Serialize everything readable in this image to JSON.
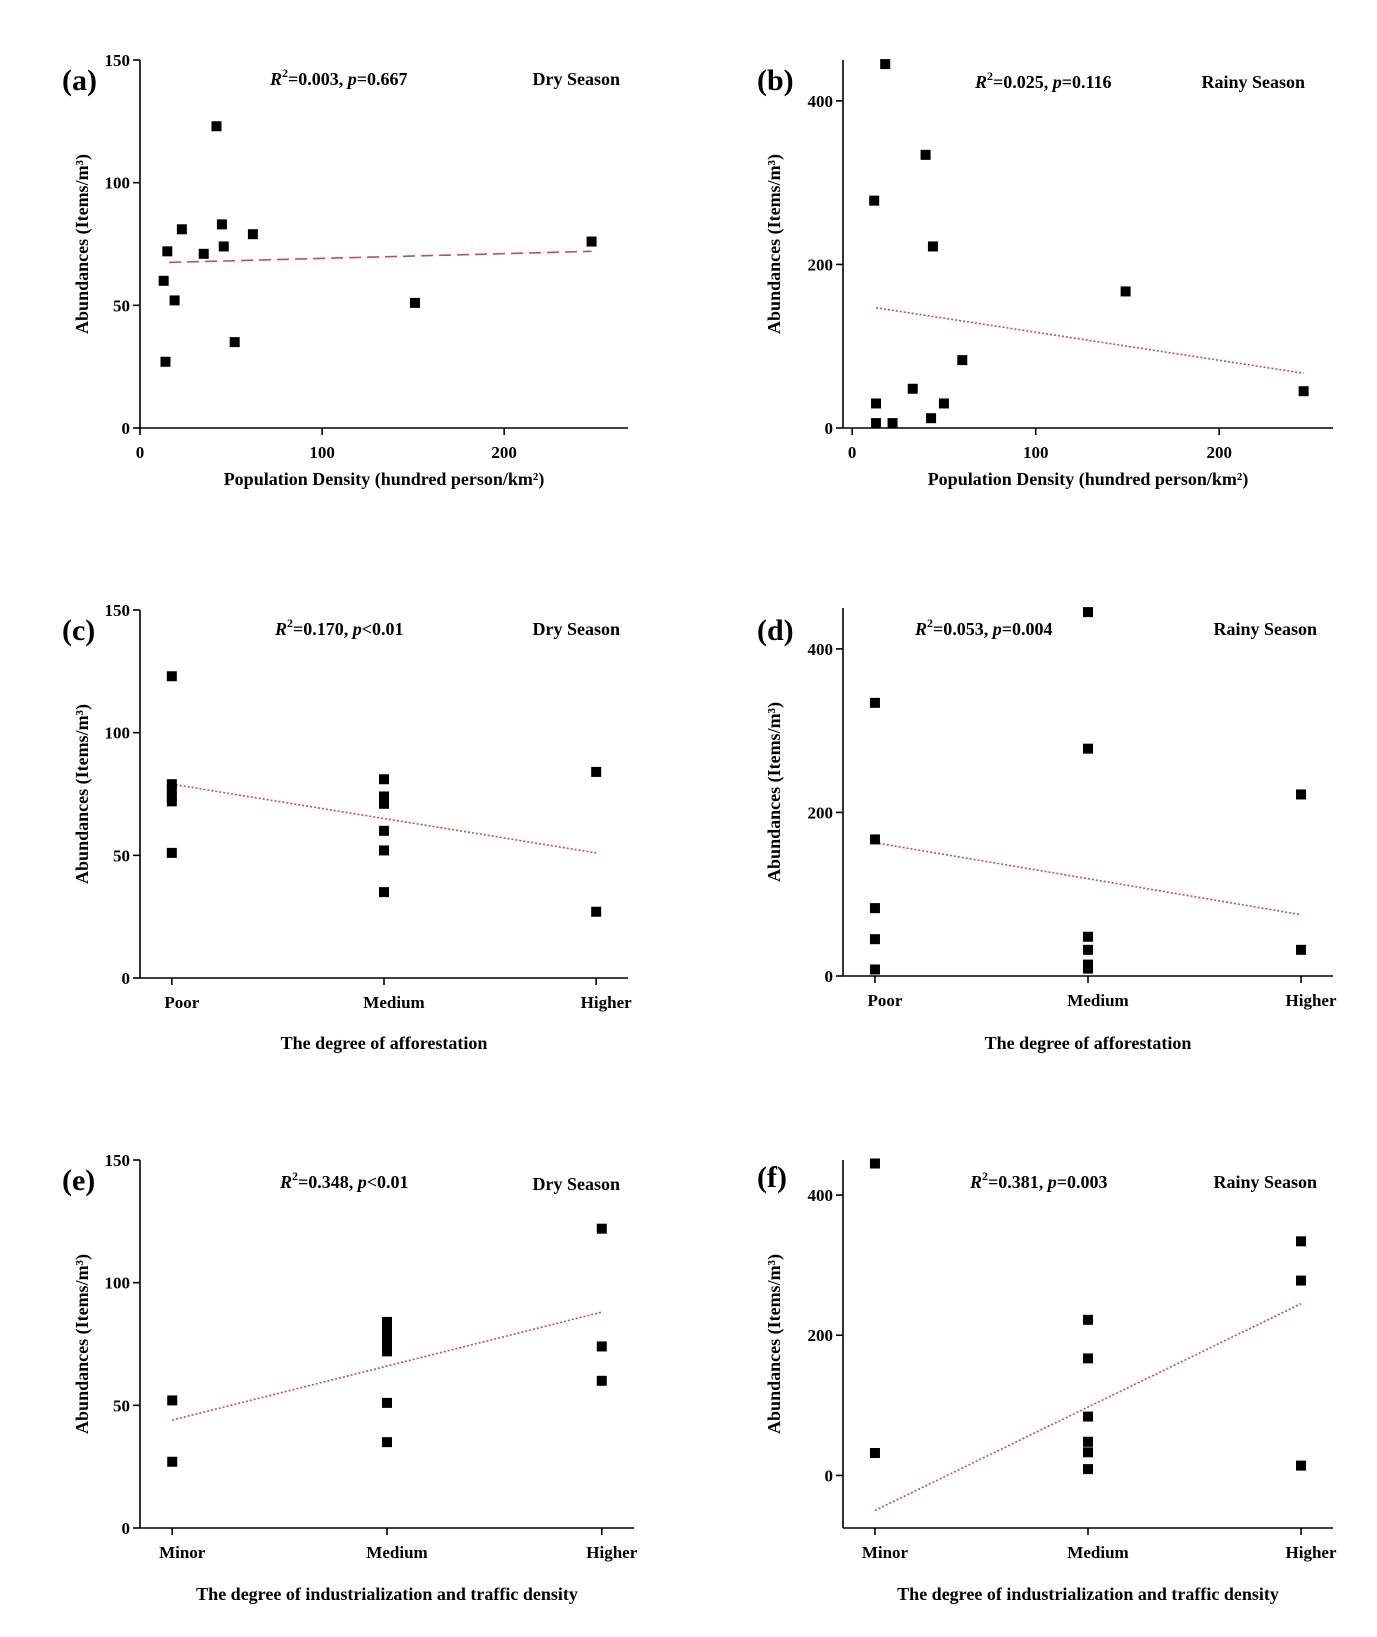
{
  "chart_data": [
    {
      "type": "scatter",
      "panel": "(a)",
      "season": "Dry Season",
      "stat": {
        "r2_label": "R",
        "r2_value": "=0.003, ",
        "p_label": "p",
        "p_value": "=0.667"
      },
      "xlabel": "Population Density (hundred person/km²)",
      "ylabel": "Abundances (Items/m³)",
      "xlim": [
        0,
        268
      ],
      "ylim": [
        0,
        150
      ],
      "xticks": [
        0,
        100,
        200
      ],
      "yticks": [
        0,
        50,
        100,
        150
      ],
      "x": [
        13,
        14,
        15,
        19,
        23,
        35,
        42,
        45,
        46,
        52,
        62,
        151,
        248
      ],
      "y": [
        60,
        27,
        72,
        52,
        81,
        71,
        123,
        83,
        74,
        35,
        79,
        51,
        76
      ],
      "trend": {
        "x": [
          16,
          248
        ],
        "y": [
          67.5,
          72
        ],
        "style": "dashed"
      }
    },
    {
      "type": "scatter",
      "panel": "(b)",
      "season": "Rainy Season",
      "stat": {
        "r2_label": "R",
        "r2_value": "=0.025, ",
        "p_label": "p",
        "p_value": "=0.116"
      },
      "xlabel": "Population Density (hundred person/km²)",
      "ylabel": "Abundances (Items/m³)",
      "xlim": [
        -5,
        262
      ],
      "ylim": [
        0,
        450
      ],
      "xticks": [
        0,
        100,
        200
      ],
      "yticks": [
        0,
        200,
        400
      ],
      "x": [
        12,
        13,
        13,
        18,
        22,
        33,
        40,
        43,
        44,
        50,
        60,
        149,
        246
      ],
      "y": [
        278,
        30,
        6,
        445,
        6,
        48,
        334,
        12,
        222,
        30,
        83,
        167,
        45
      ],
      "trend": {
        "x": [
          13,
          246
        ],
        "y": [
          147,
          67
        ],
        "style": "dotted"
      }
    },
    {
      "type": "scatter",
      "panel": "(c)",
      "season": "Dry Season",
      "stat": {
        "r2_label": "R",
        "r2_value": "=0.170, ",
        "p_label": "p",
        "p_value": "<0.01"
      },
      "xlabel": "The degree of afforestation",
      "ylabel": "Abundances (Items/m³)",
      "categories": [
        "Poor",
        "Medium",
        "Higher"
      ],
      "xlim": [
        -0.15,
        2.15
      ],
      "ylim": [
        0,
        150
      ],
      "yticks": [
        0,
        50,
        100,
        150
      ],
      "x": [
        0,
        0,
        0,
        0,
        0,
        0,
        1,
        1,
        1,
        1,
        1,
        1,
        2,
        2
      ],
      "y": [
        123,
        79,
        77,
        74,
        72,
        51,
        81,
        74,
        71,
        60,
        52,
        35,
        84,
        27
      ],
      "trend": {
        "x": [
          0,
          2
        ],
        "y": [
          79,
          51
        ],
        "style": "dotted"
      }
    },
    {
      "type": "scatter",
      "panel": "(d)",
      "season": "Rainy Season",
      "stat": {
        "r2_label": "R",
        "r2_value": "=0.053, ",
        "p_label": "p",
        "p_value": "=0.004"
      },
      "xlabel": "The degree of afforestation",
      "ylabel": "Abundances (Items/m³)",
      "categories": [
        "Poor",
        "Medium",
        "Higher"
      ],
      "xlim": [
        -0.15,
        2.15
      ],
      "ylim": [
        0,
        450
      ],
      "yticks": [
        0,
        200,
        400
      ],
      "x": [
        0,
        0,
        0,
        0,
        0,
        1,
        1,
        1,
        1,
        1,
        1,
        2,
        2
      ],
      "y": [
        334,
        167,
        83,
        45,
        8,
        445,
        278,
        48,
        32,
        14,
        9,
        222,
        32
      ],
      "trend": {
        "x": [
          0,
          2
        ],
        "y": [
          163,
          75
        ],
        "style": "dotted"
      }
    },
    {
      "type": "scatter",
      "panel": "(e)",
      "season": "Dry Season",
      "stat": {
        "r2_label": "R",
        "r2_value": "=0.348, ",
        "p_label": "p",
        "p_value": "<0.01"
      },
      "xlabel": "The degree of industrialization and traffic density",
      "ylabel": "Abundances (Items/m³)",
      "categories": [
        "Minor",
        "Medium",
        "Higher"
      ],
      "xlim": [
        -0.15,
        2.15
      ],
      "ylim": [
        0,
        150
      ],
      "yticks": [
        0,
        50,
        100,
        150
      ],
      "x": [
        0,
        0,
        1,
        1,
        1,
        1,
        1,
        1,
        1,
        1,
        2,
        2,
        2
      ],
      "y": [
        52,
        27,
        84,
        81,
        79,
        77,
        74,
        72,
        51,
        35,
        122,
        74,
        60
      ],
      "trend": {
        "x": [
          0,
          2
        ],
        "y": [
          44,
          88
        ],
        "style": "dotted"
      }
    },
    {
      "type": "scatter",
      "panel": "(f)",
      "season": "Rainy Season",
      "stat": {
        "r2_label": "R",
        "r2_value": "=0.381, ",
        "p_label": "p",
        "p_value": "=0.003"
      },
      "xlabel": "The degree of industrialization and traffic density",
      "ylabel": "Abundances (Items/m³)",
      "categories": [
        "Minor",
        "Medium",
        "Higher"
      ],
      "xlim": [
        -0.15,
        2.15
      ],
      "ylim": [
        -75,
        450
      ],
      "yticks": [
        0,
        200,
        400
      ],
      "x": [
        0,
        0,
        1,
        1,
        1,
        1,
        1,
        1,
        2,
        2,
        2
      ],
      "y": [
        445,
        32,
        222,
        167,
        84,
        48,
        33,
        9,
        334,
        278,
        14
      ],
      "trend": {
        "x": [
          0,
          2
        ],
        "y": [
          -50,
          245
        ],
        "style": "dotted"
      }
    }
  ]
}
